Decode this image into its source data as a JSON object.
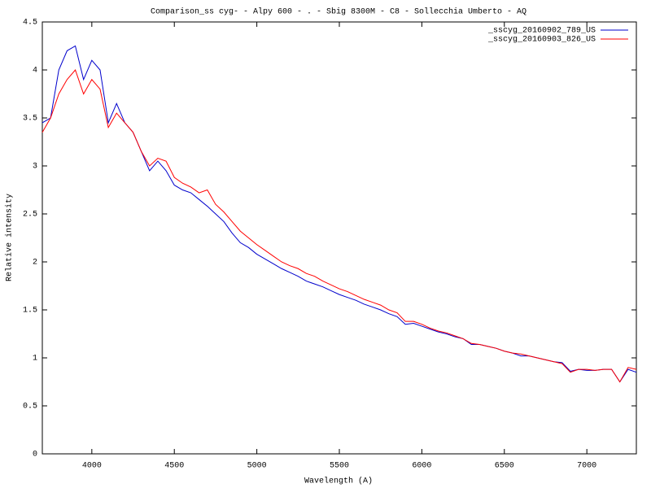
{
  "chart_data": {
    "type": "line",
    "title": "Comparison_ss cyg- - Alpy 600 - . - Sbig 8300M -  C8  - Sollecchia Umberto - AQ",
    "x_label": "Wavelength (A)",
    "y_label": "Relative intensity",
    "x": [
      3700,
      3750,
      3800,
      3850,
      3900,
      3950,
      4000,
      4050,
      4100,
      4150,
      4200,
      4250,
      4300,
      4350,
      4400,
      4450,
      4500,
      4550,
      4600,
      4650,
      4700,
      4750,
      4800,
      4850,
      4900,
      4950,
      5000,
      5050,
      5100,
      5150,
      5200,
      5250,
      5300,
      5350,
      5400,
      5450,
      5500,
      5550,
      5600,
      5650,
      5700,
      5750,
      5800,
      5850,
      5900,
      5950,
      6000,
      6050,
      6100,
      6150,
      6200,
      6250,
      6300,
      6350,
      6400,
      6450,
      6500,
      6550,
      6600,
      6650,
      6700,
      6750,
      6800,
      6850,
      6900,
      6950,
      7000,
      7050,
      7100,
      7150,
      7200,
      7250,
      7300
    ],
    "series": [
      {
        "name": "_sscyg_20160902_789_US",
        "color": "#0000cc",
        "values": [
          3.45,
          3.5,
          4.0,
          4.2,
          4.25,
          3.9,
          4.1,
          4.0,
          3.45,
          3.65,
          3.45,
          3.35,
          3.15,
          2.95,
          3.05,
          2.95,
          2.8,
          2.75,
          2.72,
          2.65,
          2.58,
          2.5,
          2.42,
          2.3,
          2.2,
          2.15,
          2.08,
          2.03,
          1.98,
          1.93,
          1.89,
          1.85,
          1.8,
          1.77,
          1.74,
          1.7,
          1.66,
          1.63,
          1.6,
          1.56,
          1.53,
          1.5,
          1.46,
          1.43,
          1.35,
          1.36,
          1.33,
          1.3,
          1.27,
          1.25,
          1.22,
          1.2,
          1.14,
          1.14,
          1.12,
          1.1,
          1.07,
          1.05,
          1.02,
          1.02,
          1.0,
          0.98,
          0.96,
          0.95,
          0.86,
          0.88,
          0.87,
          0.87,
          0.88,
          0.88,
          0.75,
          0.88,
          0.85
        ]
      },
      {
        "name": "_sscyg_20160903_826_US",
        "color": "#ff0000",
        "values": [
          3.35,
          3.5,
          3.75,
          3.9,
          4.0,
          3.75,
          3.9,
          3.8,
          3.4,
          3.55,
          3.45,
          3.35,
          3.15,
          3.0,
          3.08,
          3.05,
          2.88,
          2.82,
          2.78,
          2.72,
          2.75,
          2.6,
          2.52,
          2.42,
          2.32,
          2.25,
          2.18,
          2.12,
          2.06,
          2.0,
          1.96,
          1.93,
          1.88,
          1.85,
          1.8,
          1.76,
          1.72,
          1.69,
          1.65,
          1.61,
          1.58,
          1.55,
          1.5,
          1.47,
          1.38,
          1.38,
          1.35,
          1.31,
          1.28,
          1.26,
          1.23,
          1.2,
          1.15,
          1.14,
          1.12,
          1.1,
          1.07,
          1.05,
          1.04,
          1.02,
          1.0,
          0.98,
          0.96,
          0.94,
          0.85,
          0.88,
          0.88,
          0.87,
          0.88,
          0.88,
          0.75,
          0.9,
          0.88
        ]
      }
    ],
    "xlim": [
      3700,
      7300
    ],
    "xticks": [
      4000,
      4500,
      5000,
      5500,
      6000,
      6500,
      7000
    ],
    "ylim": [
      0,
      4.5
    ],
    "yticks": [
      0,
      0.5,
      1,
      1.5,
      2,
      2.5,
      3,
      3.5,
      4,
      4.5
    ],
    "legend": "top-right"
  }
}
